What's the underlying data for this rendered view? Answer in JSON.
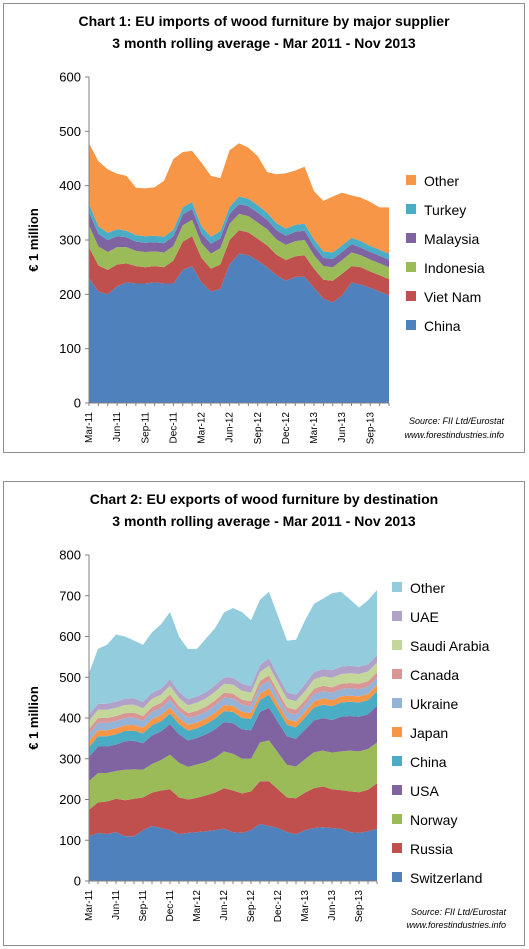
{
  "charts": [
    {
      "id": "chart1",
      "chart_data": {
        "type": "area",
        "stacked": true,
        "title": "Chart 1: EU imports of wood furniture by major supplier",
        "subtitle": "3 month rolling average - Mar 2011 - Nov 2013",
        "ylabel": "€ 1 million",
        "ylim": [
          0,
          600
        ],
        "yticks": [
          0,
          100,
          200,
          300,
          400,
          500,
          600
        ],
        "x": [
          "Mar-11",
          "Apr-11",
          "May-11",
          "Jun-11",
          "Jul-11",
          "Aug-11",
          "Sep-11",
          "Oct-11",
          "Nov-11",
          "Dec-11",
          "Jan-12",
          "Feb-12",
          "Mar-12",
          "Apr-12",
          "May-12",
          "Jun-12",
          "Jul-12",
          "Aug-12",
          "Sep-12",
          "Oct-12",
          "Nov-12",
          "Dec-12",
          "Jan-13",
          "Feb-13",
          "Mar-13",
          "Apr-13",
          "May-13",
          "Jun-13",
          "Jul-13",
          "Aug-13",
          "Sep-13",
          "Oct-13",
          "Nov-13"
        ],
        "xticks": [
          "Mar-11",
          "Jun-11",
          "Sep-11",
          "Dec-11",
          "Mar-12",
          "Jun-12",
          "Sep-12",
          "Dec-12",
          "Mar-13",
          "Jun-13",
          "Sep-13"
        ],
        "legend_position": "right",
        "source": [
          "Source: FII Ltd/Eurostat",
          "www.forestindustries.info"
        ],
        "series": [
          {
            "name": "China",
            "color": "#4f81bd",
            "values": [
              230,
              205,
              200,
              215,
              222,
              220,
              220,
              222,
              220,
              220,
              245,
              252,
              222,
              205,
              210,
              255,
              275,
              272,
              262,
              250,
              235,
              225,
              232,
              232,
              212,
              192,
              185,
              198,
              222,
              218,
              212,
              205,
              198
            ]
          },
          {
            "name": "Viet Nam",
            "color": "#c0504d",
            "values": [
              57,
              48,
              45,
              40,
              35,
              32,
              30,
              30,
              30,
              42,
              52,
              55,
              45,
              42,
              45,
              45,
              43,
              42,
              40,
              40,
              38,
              38,
              38,
              40,
              35,
              35,
              40,
              40,
              30,
              32,
              30,
              30,
              30
            ]
          },
          {
            "name": "Indonesia",
            "color": "#9bbb59",
            "values": [
              40,
              35,
              33,
              32,
              30,
              28,
              28,
              27,
              27,
              27,
              30,
              30,
              27,
              28,
              30,
              30,
              30,
              30,
              30,
              30,
              28,
              28,
              28,
              28,
              25,
              25,
              25,
              25,
              25,
              22,
              22,
              22,
              22
            ]
          },
          {
            "name": "Malaysia",
            "color": "#8064a2",
            "values": [
              25,
              23,
              22,
              20,
              18,
              17,
              17,
              17,
              17,
              18,
              20,
              20,
              18,
              18,
              18,
              18,
              18,
              18,
              18,
              17,
              17,
              17,
              17,
              17,
              16,
              15,
              15,
              15,
              15,
              14,
              14,
              14,
              14
            ]
          },
          {
            "name": "Turkey",
            "color": "#4bacc6",
            "values": [
              15,
              14,
              13,
              13,
              12,
              12,
              12,
              12,
              12,
              12,
              13,
              13,
              13,
              13,
              13,
              13,
              14,
              14,
              14,
              13,
              13,
              13,
              13,
              13,
              13,
              12,
              12,
              12,
              12,
              12,
              11,
              11,
              11
            ]
          },
          {
            "name": "Other",
            "color": "#f79646",
            "values": [
              111,
              120,
              117,
              102,
              101,
              87,
              88,
              89,
              103,
              130,
              102,
              94,
              117,
              112,
              98,
              104,
              98,
              94,
              90,
              75,
              90,
              102,
              100,
              105,
              89,
              93,
              103,
              97,
              78,
              80,
              81,
              78,
              85
            ]
          }
        ]
      }
    },
    {
      "id": "chart2",
      "chart_data": {
        "type": "area",
        "stacked": true,
        "title": "Chart 2: EU exports of wood furniture by destination",
        "subtitle": "3 month rolling average - Mar 2011 - Nov 2013",
        "ylabel": "€ 1 million",
        "ylim": [
          0,
          800
        ],
        "yticks": [
          0,
          100,
          200,
          300,
          400,
          500,
          600,
          700,
          800
        ],
        "x": [
          "Mar-11",
          "Apr-11",
          "May-11",
          "Jun-11",
          "Jul-11",
          "Aug-11",
          "Sep-11",
          "Oct-11",
          "Nov-11",
          "Dec-11",
          "Jan-12",
          "Feb-12",
          "Mar-12",
          "Apr-12",
          "May-12",
          "Jun-12",
          "Jul-12",
          "Aug-12",
          "Sep-12",
          "Oct-12",
          "Nov-12",
          "Dec-12",
          "Jan-13",
          "Feb-13",
          "Mar-13",
          "Apr-13",
          "May-13",
          "Jun-13",
          "Jul-13",
          "Aug-13",
          "Sep-13",
          "Oct-13",
          "Nov-13"
        ],
        "xticks": [
          "Mar-11",
          "Jun-11",
          "Sep-11",
          "Dec-11",
          "Mar-12",
          "Jun-12",
          "Sep-12",
          "Dec-12",
          "Mar-13",
          "Jun-13",
          "Sep-13"
        ],
        "legend_position": "right",
        "source": [
          "Source: FII Ltd/Eurostat",
          "www.forestindustries.info"
        ],
        "series": [
          {
            "name": "Switzerland",
            "color": "#4f81bd",
            "values": [
              110,
              118,
              115,
              120,
              110,
              110,
              125,
              135,
              130,
              125,
              115,
              118,
              120,
              122,
              125,
              128,
              120,
              118,
              125,
              140,
              135,
              130,
              120,
              115,
              125,
              130,
              132,
              130,
              128,
              120,
              118,
              122,
              128
            ]
          },
          {
            "name": "Russia",
            "color": "#c0504d",
            "values": [
              65,
              75,
              80,
              82,
              88,
              92,
              80,
              82,
              92,
              100,
              90,
              82,
              84,
              88,
              92,
              100,
              102,
              97,
              95,
              105,
              110,
              95,
              85,
              88,
              92,
              98,
              100,
              95,
              95,
              100,
              100,
              102,
              112
            ]
          },
          {
            "name": "Norway",
            "color": "#9bbb59",
            "values": [
              70,
              72,
              70,
              68,
              75,
              72,
              68,
              70,
              75,
              85,
              85,
              80,
              82,
              82,
              85,
              90,
              90,
              85,
              80,
              95,
              100,
              90,
              80,
              78,
              82,
              88,
              88,
              90,
              95,
              100,
              100,
              100,
              100
            ]
          },
          {
            "name": "USA",
            "color": "#8064a2",
            "values": [
              60,
              65,
              65,
              65,
              70,
              70,
              65,
              70,
              70,
              75,
              70,
              65,
              65,
              68,
              70,
              72,
              75,
              72,
              70,
              75,
              80,
              75,
              70,
              68,
              72,
              78,
              80,
              80,
              85,
              85,
              85,
              85,
              90
            ]
          },
          {
            "name": "China",
            "color": "#4bacc6",
            "values": [
              23,
              25,
              25,
              25,
              25,
              25,
              24,
              25,
              25,
              26,
              25,
              24,
              24,
              25,
              26,
              27,
              28,
              28,
              28,
              30,
              32,
              30,
              28,
              28,
              30,
              32,
              33,
              34,
              35,
              35,
              35,
              35,
              36
            ]
          },
          {
            "name": "Japan",
            "color": "#f79646",
            "values": [
              15,
              15,
              15,
              15,
              14,
              14,
              14,
              15,
              15,
              15,
              14,
              14,
              14,
              14,
              15,
              15,
              15,
              15,
              14,
              15,
              16,
              15,
              14,
              14,
              14,
              15,
              15,
              15,
              15,
              15,
              15,
              15,
              15
            ]
          },
          {
            "name": "Ukraine",
            "color": "#95b3d7",
            "values": [
              18,
              18,
              18,
              18,
              18,
              18,
              17,
              18,
              18,
              19,
              18,
              17,
              17,
              17,
              18,
              18,
              18,
              18,
              17,
              18,
              19,
              18,
              17,
              17,
              17,
              18,
              18,
              18,
              18,
              18,
              18,
              18,
              18
            ]
          },
          {
            "name": "Canada",
            "color": "#d99694",
            "values": [
              12,
              12,
              12,
              12,
              12,
              12,
              12,
              12,
              12,
              13,
              12,
              12,
              12,
              12,
              12,
              12,
              12,
              12,
              12,
              13,
              13,
              12,
              12,
              12,
              12,
              13,
              13,
              13,
              13,
              13,
              13,
              13,
              13
            ]
          },
          {
            "name": "Saudi Arabia",
            "color": "#c4d79b",
            "values": [
              20,
              20,
              20,
              20,
              20,
              20,
              19,
              20,
              20,
              21,
              20,
              19,
              20,
              20,
              21,
              22,
              22,
              22,
              21,
              22,
              23,
              22,
              21,
              21,
              22,
              23,
              23,
              24,
              24,
              24,
              24,
              24,
              24
            ]
          },
          {
            "name": "UAE",
            "color": "#b1a0c7",
            "values": [
              15,
              15,
              15,
              15,
              15,
              15,
              15,
              15,
              15,
              16,
              15,
              15,
              15,
              15,
              16,
              16,
              17,
              17,
              16,
              17,
              18,
              17,
              16,
              16,
              17,
              18,
              18,
              18,
              18,
              18,
              18,
              18,
              18
            ]
          },
          {
            "name": "Other",
            "color": "#93cddd",
            "values": [
              102,
              135,
              145,
              165,
              153,
              142,
              141,
              148,
              158,
              165,
              136,
              123,
              117,
              132,
              140,
              159,
              171,
              176,
              162,
              160,
              164,
              146,
              127,
              135,
              157,
              167,
              173,
              189,
              184,
              163,
              145,
              157,
              160
            ]
          }
        ]
      }
    }
  ]
}
